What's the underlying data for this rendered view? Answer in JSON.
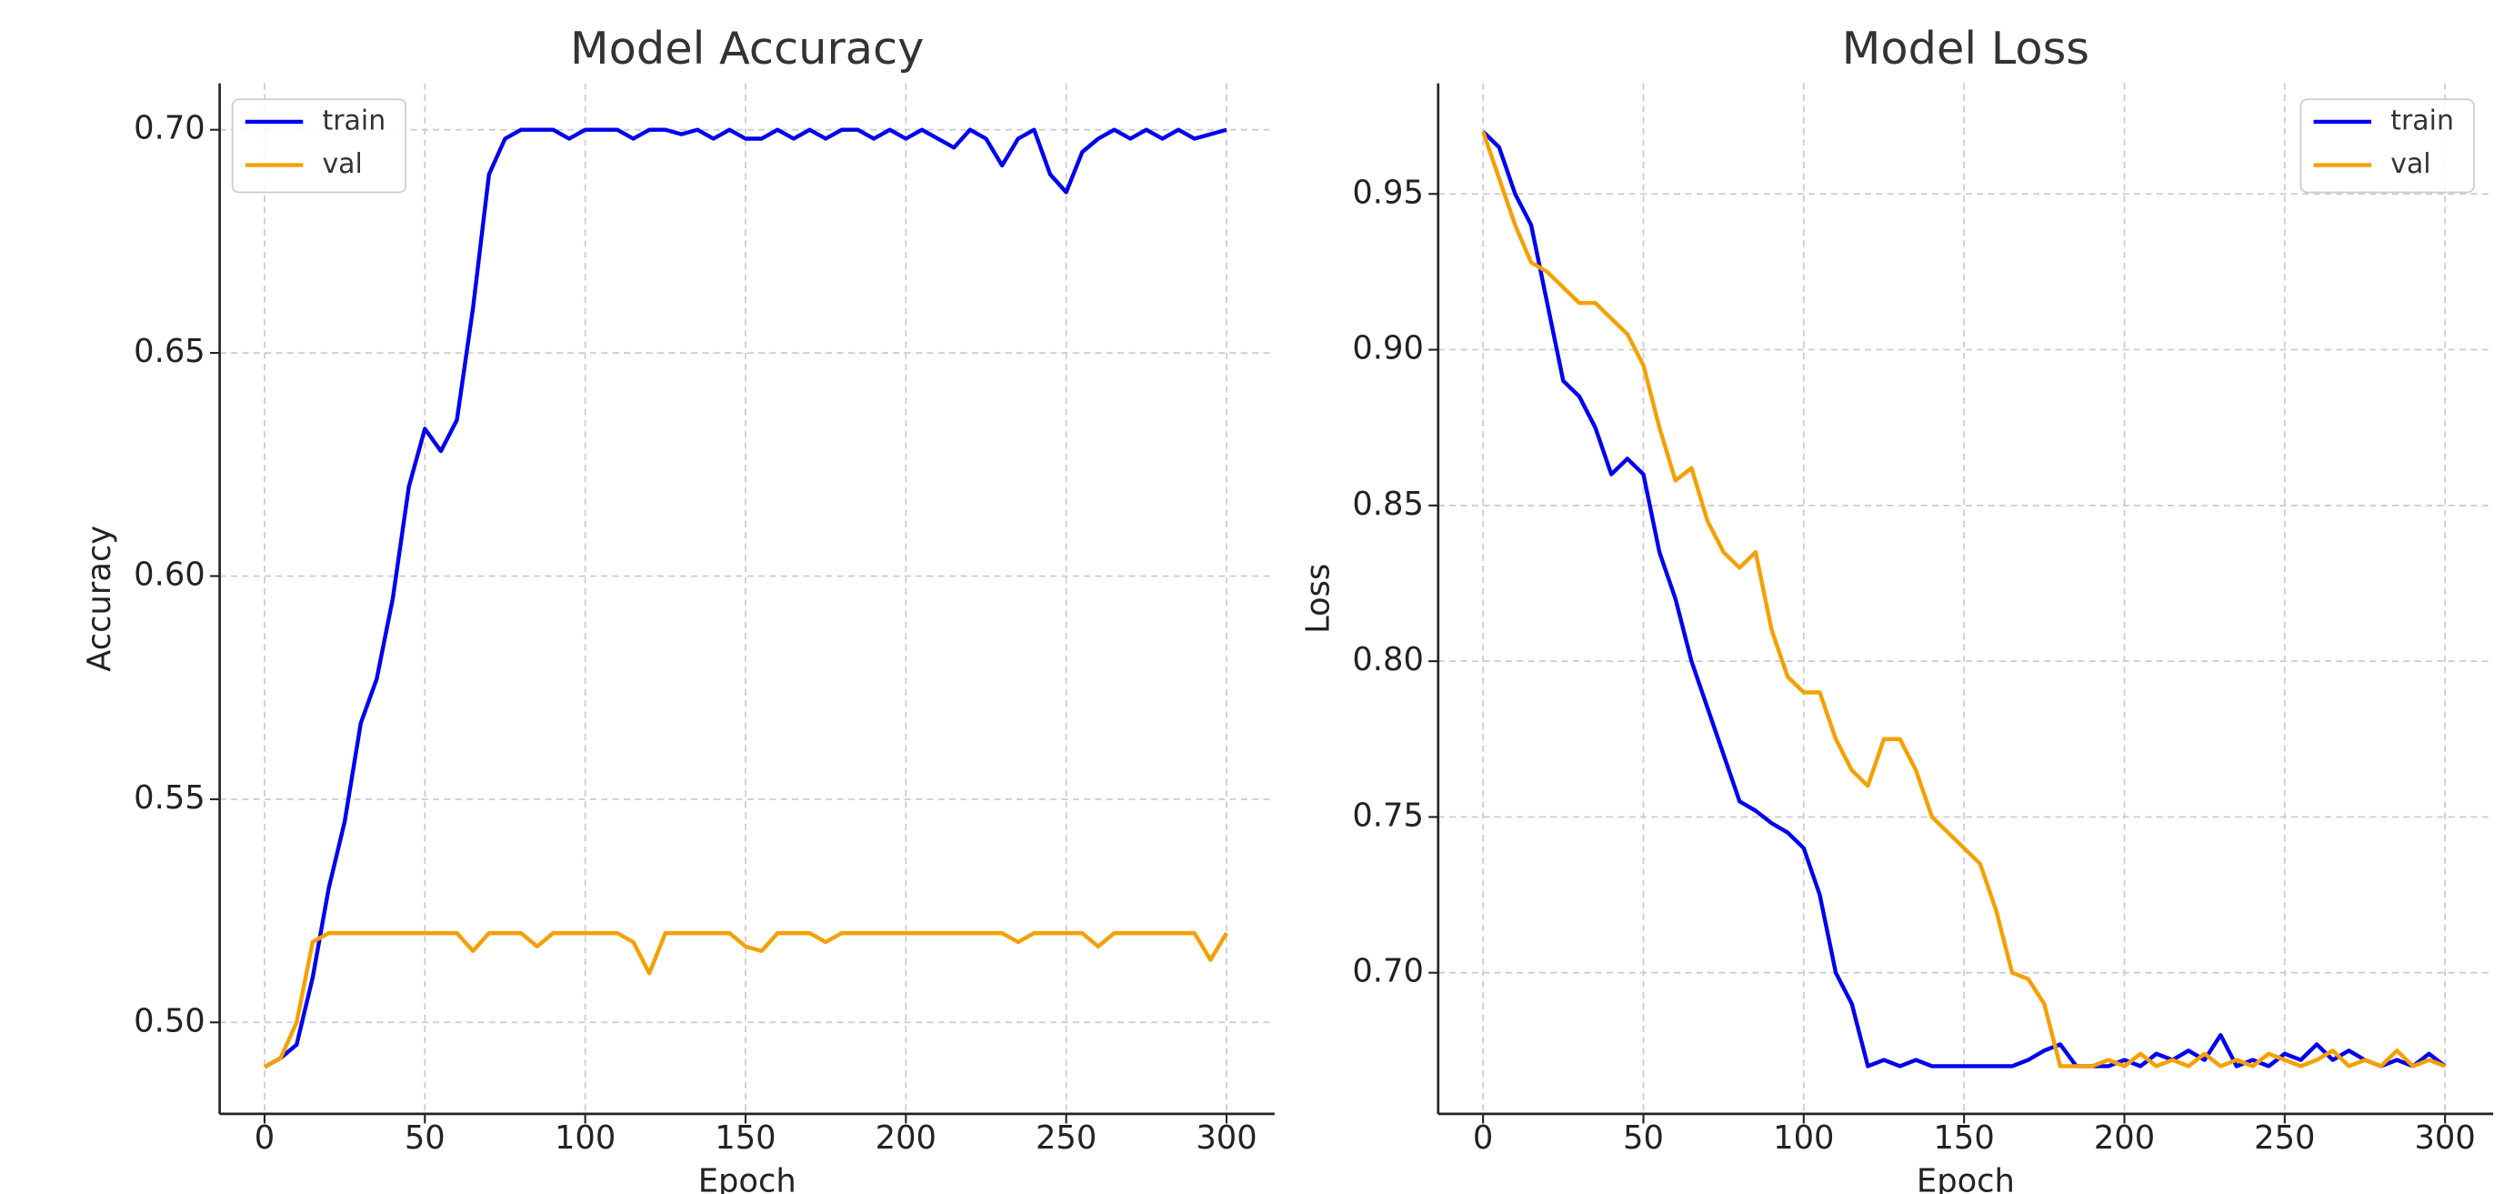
{
  "chart_data": [
    {
      "type": "line",
      "title": "Model Accuracy",
      "x_label": "Epoch",
      "y_label": "Accuracy",
      "x": [
        0,
        5,
        10,
        15,
        20,
        25,
        30,
        35,
        40,
        45,
        50,
        55,
        60,
        65,
        70,
        75,
        80,
        85,
        90,
        95,
        100,
        105,
        110,
        115,
        120,
        125,
        130,
        135,
        140,
        145,
        150,
        155,
        160,
        165,
        170,
        175,
        180,
        185,
        190,
        195,
        200,
        205,
        210,
        215,
        220,
        225,
        230,
        235,
        240,
        245,
        250,
        255,
        260,
        265,
        270,
        275,
        280,
        285,
        290,
        295,
        300
      ],
      "series": [
        {
          "name": "train",
          "color": "#0000ee",
          "values": [
            0.49,
            0.492,
            0.495,
            0.51,
            0.53,
            0.545,
            0.567,
            0.577,
            0.595,
            0.62,
            0.633,
            0.628,
            0.635,
            0.66,
            0.69,
            0.698,
            0.7,
            0.7,
            0.7,
            0.698,
            0.7,
            0.7,
            0.7,
            0.698,
            0.7,
            0.7,
            0.699,
            0.7,
            0.698,
            0.7,
            0.698,
            0.698,
            0.7,
            0.698,
            0.7,
            0.698,
            0.7,
            0.7,
            0.698,
            0.7,
            0.698,
            0.7,
            0.698,
            0.696,
            0.7,
            0.698,
            0.692,
            0.698,
            0.7,
            0.69,
            0.686,
            0.695,
            0.698,
            0.7,
            0.698,
            0.7,
            0.698,
            0.7,
            0.698,
            0.699,
            0.7
          ]
        },
        {
          "name": "val",
          "color": "#f5a000",
          "values": [
            0.49,
            0.492,
            0.5,
            0.518,
            0.52,
            0.52,
            0.52,
            0.52,
            0.52,
            0.52,
            0.52,
            0.52,
            0.52,
            0.516,
            0.52,
            0.52,
            0.52,
            0.517,
            0.52,
            0.52,
            0.52,
            0.52,
            0.52,
            0.518,
            0.511,
            0.52,
            0.52,
            0.52,
            0.52,
            0.52,
            0.517,
            0.516,
            0.52,
            0.52,
            0.52,
            0.518,
            0.52,
            0.52,
            0.52,
            0.52,
            0.52,
            0.52,
            0.52,
            0.52,
            0.52,
            0.52,
            0.52,
            0.518,
            0.52,
            0.52,
            0.52,
            0.52,
            0.517,
            0.52,
            0.52,
            0.52,
            0.52,
            0.52,
            0.52,
            0.514,
            0.52
          ]
        }
      ],
      "xlim": [
        -14,
        315
      ],
      "xticks": [
        0,
        50,
        100,
        150,
        200,
        250,
        300
      ],
      "ylim": [
        0.4795,
        0.7104
      ],
      "yticks": [
        {
          "value": 0.5,
          "label": "0.50"
        },
        0.55,
        {
          "value": 0.6,
          "label": "0.60"
        },
        0.65,
        {
          "value": 0.7,
          "label": "0.70"
        }
      ],
      "grid": true,
      "legend": "upper left"
    },
    {
      "type": "line",
      "title": "Model Loss",
      "x_label": "Epoch",
      "y_label": "Loss",
      "x": [
        0,
        5,
        10,
        15,
        20,
        25,
        30,
        35,
        40,
        45,
        50,
        55,
        60,
        65,
        70,
        75,
        80,
        85,
        90,
        95,
        100,
        105,
        110,
        115,
        120,
        125,
        130,
        135,
        140,
        145,
        150,
        155,
        160,
        165,
        170,
        175,
        180,
        185,
        190,
        195,
        200,
        205,
        210,
        215,
        220,
        225,
        230,
        235,
        240,
        245,
        250,
        255,
        260,
        265,
        270,
        275,
        280,
        285,
        290,
        295,
        300
      ],
      "series": [
        {
          "name": "train",
          "color": "#0000ee",
          "values": [
            0.97,
            0.965,
            0.95,
            0.94,
            0.915,
            0.89,
            0.885,
            0.875,
            0.86,
            0.865,
            0.86,
            0.835,
            0.82,
            0.8,
            0.785,
            0.77,
            0.755,
            0.752,
            0.748,
            0.745,
            0.74,
            0.725,
            0.7,
            0.69,
            0.67,
            0.672,
            0.67,
            0.672,
            0.67,
            0.67,
            0.67,
            0.67,
            0.67,
            0.67,
            0.672,
            0.675,
            0.677,
            0.67,
            0.67,
            0.67,
            0.672,
            0.67,
            0.674,
            0.672,
            0.675,
            0.672,
            0.68,
            0.67,
            0.672,
            0.67,
            0.674,
            0.672,
            0.677,
            0.672,
            0.675,
            0.672,
            0.67,
            0.672,
            0.67,
            0.674,
            0.67
          ]
        },
        {
          "name": "val",
          "color": "#f5a000",
          "values": [
            0.97,
            0.955,
            0.94,
            0.928,
            0.925,
            0.92,
            0.915,
            0.915,
            0.91,
            0.905,
            0.895,
            0.875,
            0.858,
            0.862,
            0.845,
            0.835,
            0.83,
            0.835,
            0.81,
            0.795,
            0.79,
            0.79,
            0.775,
            0.765,
            0.76,
            0.775,
            0.775,
            0.765,
            0.75,
            0.745,
            0.74,
            0.735,
            0.72,
            0.7,
            0.698,
            0.69,
            0.67,
            0.67,
            0.67,
            0.672,
            0.67,
            0.674,
            0.67,
            0.672,
            0.67,
            0.674,
            0.67,
            0.672,
            0.67,
            0.674,
            0.672,
            0.67,
            0.672,
            0.675,
            0.67,
            0.672,
            0.67,
            0.675,
            0.67,
            0.672,
            0.67
          ]
        }
      ],
      "xlim": [
        -14,
        315
      ],
      "xticks": [
        0,
        50,
        100,
        150,
        200,
        250,
        300
      ],
      "ylim": [
        0.6547,
        0.9855
      ],
      "yticks": [
        {
          "value": 0.7,
          "label": "0.70"
        },
        0.75,
        {
          "value": 0.8,
          "label": "0.80"
        },
        0.85,
        {
          "value": 0.9,
          "label": "0.90"
        },
        0.95
      ],
      "grid": true,
      "legend": "upper right"
    }
  ]
}
